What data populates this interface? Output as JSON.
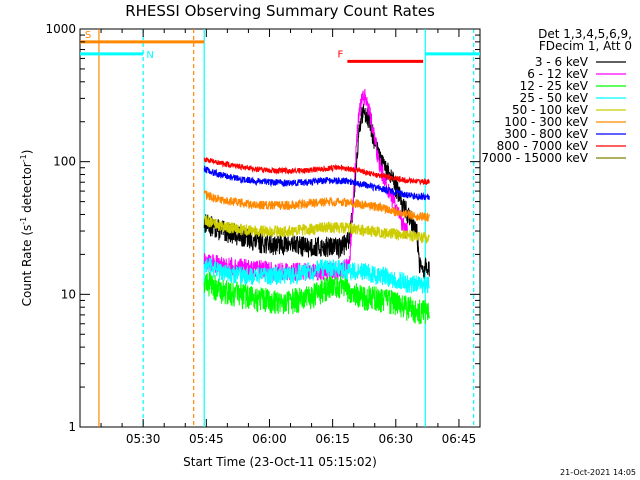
{
  "chart_data": {
    "type": "line",
    "title": "RHESSI Observing Summary Count Rates",
    "ylabel_main": "Count Rate (s",
    "ylabel_sup": "-1",
    "ylabel_mid": " detector",
    "ylabel_sup2": "-1",
    "ylabel_end": ")",
    "xlabel": "Start Time (23-Oct-11 05:15:02)",
    "x_range_minutes": [
      0,
      95
    ],
    "ylim": [
      1,
      1000
    ],
    "y_scale": "log",
    "y_ticks": [
      {
        "value": 1,
        "label": "1"
      },
      {
        "value": 10,
        "label": "10"
      },
      {
        "value": 100,
        "label": "100"
      },
      {
        "value": 1000,
        "label": "1000"
      }
    ],
    "x_ticks": [
      {
        "minute": 15,
        "label": "05:30"
      },
      {
        "minute": 30,
        "label": "05:45"
      },
      {
        "minute": 45,
        "label": "06:00"
      },
      {
        "minute": 60,
        "label": "06:15"
      },
      {
        "minute": 75,
        "label": "06:30"
      },
      {
        "minute": 90,
        "label": "06:45"
      }
    ],
    "legend_header": [
      "Det 1,3,4,5,6,9,",
      "FDecim 1, Att 0"
    ],
    "series": [
      {
        "name": "3 - 6 keV",
        "color": "#000000",
        "x": [
          29.5,
          33,
          38,
          42,
          46,
          50,
          54,
          58,
          62,
          64,
          65,
          66,
          67,
          68,
          69,
          70,
          71,
          72,
          73,
          74,
          75,
          76,
          77,
          78,
          79,
          80,
          80.5,
          81,
          82,
          83
        ],
        "y": [
          35,
          31,
          28,
          25,
          24,
          24,
          23,
          23,
          23,
          26,
          55,
          140,
          230,
          240,
          190,
          140,
          110,
          95,
          85,
          75,
          65,
          55,
          45,
          40,
          35,
          30,
          18,
          15,
          16,
          16
        ]
      },
      {
        "name": "6 - 12 keV",
        "color": "#ff00ff",
        "x": [
          29.5,
          33,
          38,
          42,
          46,
          50,
          54,
          58,
          62,
          64,
          65,
          66,
          67,
          68,
          69,
          70,
          71,
          72,
          73,
          74,
          75,
          76,
          77,
          78
        ],
        "y": [
          18,
          17,
          16,
          16,
          15,
          15,
          15,
          15,
          15,
          17,
          60,
          200,
          320,
          300,
          220,
          150,
          100,
          80,
          65,
          55,
          45,
          38,
          32,
          28
        ]
      },
      {
        "name": "12 - 25 keV",
        "color": "#00ff00",
        "x": [
          29.5,
          33,
          38,
          42,
          46,
          50,
          54,
          58,
          62,
          64,
          66,
          68,
          70,
          72,
          74,
          76,
          78,
          80,
          83
        ],
        "y": [
          13,
          11,
          10,
          9.5,
          9,
          9,
          9.5,
          11,
          12,
          11,
          10,
          9.5,
          9.5,
          9,
          9,
          8.5,
          8,
          7.5,
          7.5
        ]
      },
      {
        "name": "25 - 50 keV",
        "color": "#00ffff",
        "x": [
          29.5,
          33,
          38,
          42,
          46,
          50,
          54,
          58,
          62,
          64,
          66,
          68,
          70,
          72,
          74,
          76,
          78,
          80,
          83
        ],
        "y": [
          17,
          15,
          14,
          14,
          14,
          14,
          15,
          16,
          16,
          15,
          15,
          15,
          14,
          14,
          13,
          13,
          12,
          12,
          11.5
        ]
      },
      {
        "name": "50 - 100 keV",
        "color": "#cccc00",
        "x": [
          29.5,
          33,
          38,
          42,
          46,
          50,
          54,
          58,
          62,
          64,
          66,
          68,
          70,
          72,
          74,
          76,
          78,
          80,
          83
        ],
        "y": [
          37,
          33,
          31,
          30,
          30,
          30,
          31,
          32,
          32,
          32,
          31,
          30,
          30,
          29,
          29,
          28,
          28,
          27,
          27
        ]
      },
      {
        "name": "100 - 300 keV",
        "color": "#ff8800",
        "x": [
          29.5,
          33,
          38,
          42,
          46,
          50,
          54,
          58,
          62,
          64,
          66,
          68,
          70,
          72,
          74,
          76,
          78,
          80,
          83
        ],
        "y": [
          57,
          52,
          49,
          47,
          47,
          47,
          48,
          50,
          50,
          49,
          48,
          47,
          46,
          45,
          43,
          41,
          40,
          39,
          38
        ]
      },
      {
        "name": "300 - 800 keV",
        "color": "#0000ff",
        "x": [
          29.5,
          33,
          38,
          42,
          46,
          50,
          54,
          58,
          62,
          64,
          66,
          68,
          70,
          72,
          74,
          76,
          78,
          80,
          83
        ],
        "y": [
          88,
          80,
          74,
          71,
          70,
          69,
          70,
          72,
          72,
          71,
          69,
          67,
          64,
          62,
          60,
          58,
          56,
          55,
          54
        ]
      },
      {
        "name": "800 - 7000 keV",
        "color": "#ff0000",
        "x": [
          29.5,
          33,
          38,
          42,
          46,
          50,
          54,
          58,
          62,
          64,
          66,
          68,
          70,
          72,
          74,
          76,
          78,
          80,
          83
        ],
        "y": [
          105,
          98,
          92,
          88,
          86,
          85,
          86,
          89,
          90,
          88,
          86,
          83,
          80,
          78,
          76,
          74,
          72,
          71,
          70
        ]
      },
      {
        "name": "7000 - 15000 keV",
        "color": "#808000",
        "x": [],
        "y": []
      }
    ],
    "annotations": {
      "S": {
        "label": "S",
        "color": "#ff8800",
        "y": 800,
        "x_start": 0,
        "x_end": 29.5
      },
      "N": {
        "label": "N",
        "color": "#00ffff",
        "y": 650,
        "x_start": 0,
        "x_end": 15,
        "x_start2": 82,
        "x_end2": 95
      },
      "F": {
        "label": "F",
        "color": "#ff0000",
        "y": 570,
        "x_start": 63.5,
        "x_end": 81.5
      }
    },
    "markers": [
      {
        "minute": 4.5,
        "color": "#ff8800",
        "style": "solid"
      },
      {
        "minute": 15,
        "color": "#00ffff",
        "style": "dashed"
      },
      {
        "minute": 27,
        "color": "#ff8800",
        "style": "dashed"
      },
      {
        "minute": 29.5,
        "color": "#00ffff",
        "style": "solid"
      },
      {
        "minute": 82,
        "color": "#00ffff",
        "style": "solid"
      },
      {
        "minute": 93.5,
        "color": "#00ffff",
        "style": "dashed"
      }
    ]
  },
  "footer_timestamp": "21-Oct-2021 14:05"
}
